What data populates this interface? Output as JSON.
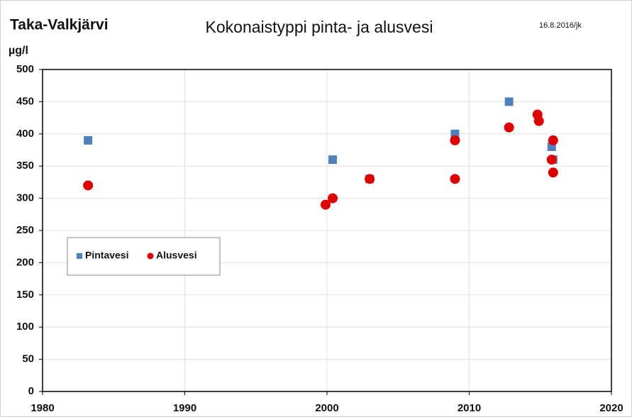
{
  "chart_data": {
    "type": "scatter",
    "title": "Kokonaistyppi pinta- ja alusvesi",
    "lake": "Taka-Valkjärvi",
    "date_note": "16.8.2016/jk",
    "y_label": "µg/l",
    "xlim": [
      1980,
      2020
    ],
    "xticks": [
      1980,
      1990,
      2000,
      2010,
      2020
    ],
    "ylim": [
      0,
      500
    ],
    "yticks": [
      0,
      50,
      100,
      150,
      200,
      250,
      300,
      350,
      400,
      450,
      500
    ],
    "grid": true,
    "legend": "left",
    "series": [
      {
        "name": "Pintavesi",
        "color": "#4f81bd",
        "marker": "square",
        "x": [
          1983.2,
          2000.4,
          2003.0,
          2009.0,
          2012.8,
          2015.8,
          2015.9
        ],
        "values": [
          390,
          360,
          330,
          400,
          450,
          380,
          360
        ]
      },
      {
        "name": "Alusvesi",
        "color": "#e00000",
        "marker": "circle",
        "x": [
          1983.2,
          1999.9,
          2000.4,
          2003.0,
          2009.0,
          2009.0,
          2012.8,
          2014.8,
          2014.9,
          2015.9,
          2015.8,
          2015.9
        ],
        "values": [
          320,
          290,
          300,
          330,
          390,
          330,
          410,
          430,
          420,
          390,
          360,
          340
        ]
      }
    ]
  }
}
